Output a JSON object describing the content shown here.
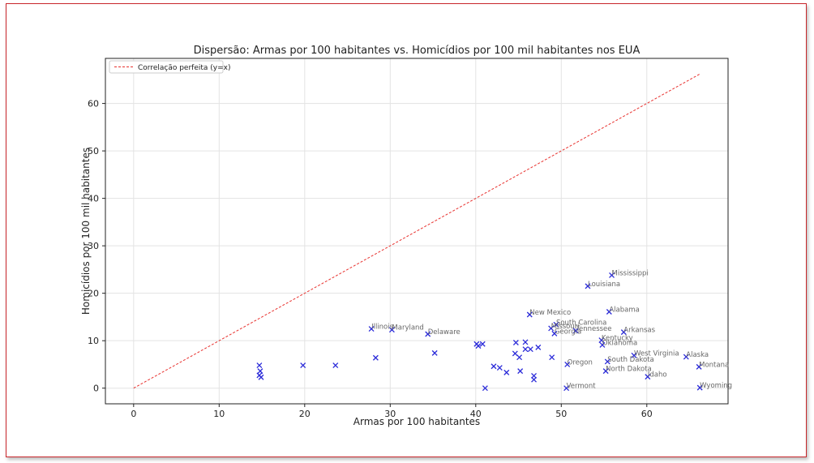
{
  "chart_data": {
    "type": "scatter",
    "title": "Dispersão: Armas por 100 habitantes vs. Homicídios por 100 mil habitantes nos EUA",
    "xlabel": "Armas por 100 habitantes",
    "ylabel": "Homicídios por 100 mil habitantes",
    "xlim": [
      -3.3,
      69.5
    ],
    "ylim": [
      -3.3,
      69.5
    ],
    "xticks": [
      0,
      10,
      20,
      30,
      40,
      50,
      60
    ],
    "yticks": [
      0,
      10,
      20,
      30,
      40,
      50,
      60
    ],
    "grid": true,
    "legend": {
      "placement": "top-left",
      "entries": [
        "Correlação perfeita (y=x)"
      ]
    },
    "reference_line": {
      "name": "Correlação perfeita (y=x)",
      "from": [
        0,
        0
      ],
      "to": [
        66.3,
        66.3
      ],
      "color": "#e8322f",
      "style": "dashed"
    },
    "marker_color": "#2b2bd9",
    "points": [
      {
        "x": 14.7,
        "y": 4.8,
        "label": ""
      },
      {
        "x": 14.8,
        "y": 3.6,
        "label": ""
      },
      {
        "x": 14.7,
        "y": 2.7,
        "label": ""
      },
      {
        "x": 14.9,
        "y": 2.3,
        "label": ""
      },
      {
        "x": 19.8,
        "y": 4.8,
        "label": ""
      },
      {
        "x": 23.6,
        "y": 4.8,
        "label": ""
      },
      {
        "x": 28.3,
        "y": 6.4,
        "label": ""
      },
      {
        "x": 27.8,
        "y": 12.5,
        "label": "Illinois"
      },
      {
        "x": 30.2,
        "y": 12.3,
        "label": "Maryland"
      },
      {
        "x": 34.4,
        "y": 11.4,
        "label": "Delaware"
      },
      {
        "x": 35.2,
        "y": 7.4,
        "label": ""
      },
      {
        "x": 40.1,
        "y": 9.3,
        "label": ""
      },
      {
        "x": 40.3,
        "y": 8.9,
        "label": ""
      },
      {
        "x": 40.8,
        "y": 9.3,
        "label": ""
      },
      {
        "x": 41.1,
        "y": 0.0,
        "label": ""
      },
      {
        "x": 42.1,
        "y": 4.6,
        "label": ""
      },
      {
        "x": 42.8,
        "y": 4.3,
        "label": ""
      },
      {
        "x": 43.6,
        "y": 3.3,
        "label": ""
      },
      {
        "x": 44.6,
        "y": 7.3,
        "label": ""
      },
      {
        "x": 44.7,
        "y": 9.6,
        "label": ""
      },
      {
        "x": 45.1,
        "y": 6.5,
        "label": ""
      },
      {
        "x": 45.2,
        "y": 3.6,
        "label": ""
      },
      {
        "x": 45.8,
        "y": 9.7,
        "label": ""
      },
      {
        "x": 45.8,
        "y": 8.2,
        "label": ""
      },
      {
        "x": 46.4,
        "y": 8.2,
        "label": ""
      },
      {
        "x": 46.3,
        "y": 15.5,
        "label": "New Mexico"
      },
      {
        "x": 46.8,
        "y": 2.6,
        "label": ""
      },
      {
        "x": 46.8,
        "y": 1.8,
        "label": ""
      },
      {
        "x": 47.3,
        "y": 8.6,
        "label": ""
      },
      {
        "x": 48.9,
        "y": 6.5,
        "label": ""
      },
      {
        "x": 48.8,
        "y": 12.6,
        "label": "Missouri"
      },
      {
        "x": 49.2,
        "y": 11.5,
        "label": "Georgia"
      },
      {
        "x": 49.4,
        "y": 13.4,
        "label": "South Carolina"
      },
      {
        "x": 50.7,
        "y": 5.0,
        "label": "Oregon"
      },
      {
        "x": 50.6,
        "y": 0.0,
        "label": "Vermont"
      },
      {
        "x": 51.7,
        "y": 12.1,
        "label": "Tennessee"
      },
      {
        "x": 53.1,
        "y": 21.5,
        "label": "Louisiana"
      },
      {
        "x": 54.7,
        "y": 10.1,
        "label": "Kentucky"
      },
      {
        "x": 54.8,
        "y": 9.1,
        "label": "Oklahoma"
      },
      {
        "x": 55.2,
        "y": 3.6,
        "label": "North Dakota"
      },
      {
        "x": 55.4,
        "y": 5.6,
        "label": "South Dakota"
      },
      {
        "x": 55.6,
        "y": 16.1,
        "label": "Alabama"
      },
      {
        "x": 55.9,
        "y": 23.8,
        "label": "Mississippi"
      },
      {
        "x": 57.3,
        "y": 11.8,
        "label": "Arkansas"
      },
      {
        "x": 58.5,
        "y": 6.9,
        "label": "West Virginia"
      },
      {
        "x": 60.1,
        "y": 2.4,
        "label": "Idaho"
      },
      {
        "x": 64.6,
        "y": 6.6,
        "label": "Alaska"
      },
      {
        "x": 66.1,
        "y": 4.5,
        "label": "Montana"
      },
      {
        "x": 66.2,
        "y": 0.1,
        "label": "Wyoming"
      }
    ]
  }
}
